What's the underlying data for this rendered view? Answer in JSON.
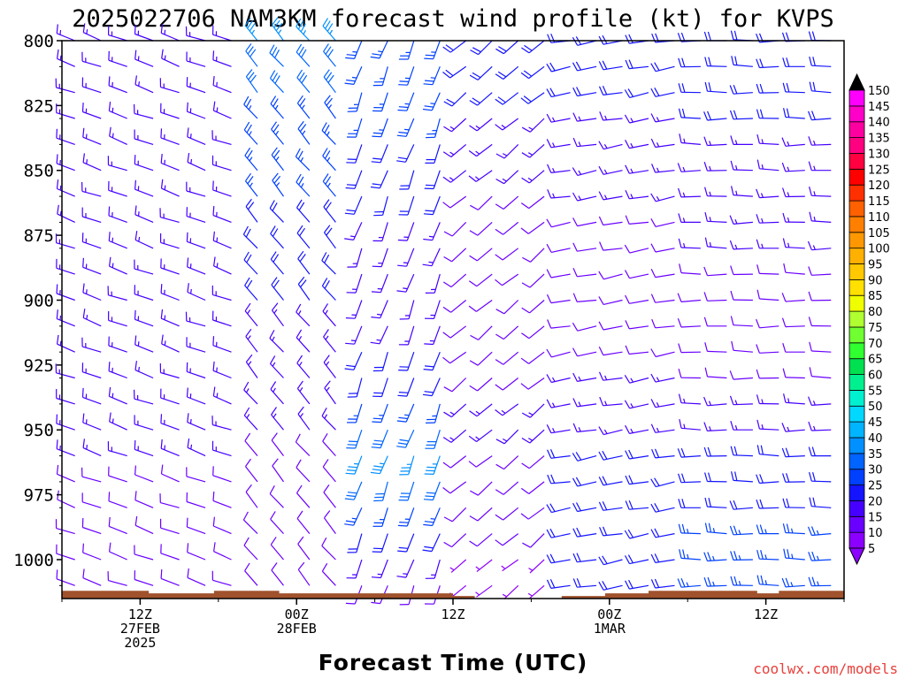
{
  "title": "2025022706 NAM3KM forecast wind profile (kt) for KVPS",
  "x_axis_label": "Forecast Time (UTC)",
  "credit": "coolwx.com/models",
  "credit_color": "#e8413c",
  "terrain_color": "#a0522d",
  "y_ticks": [
    "800",
    "825",
    "850",
    "875",
    "900",
    "925",
    "950",
    "975",
    "1000"
  ],
  "x_ticks": [
    {
      "hour": 6,
      "lines": [
        "12Z",
        "27FEB",
        "2025"
      ]
    },
    {
      "hour": 18,
      "lines": [
        "00Z",
        "28FEB"
      ]
    },
    {
      "hour": 30,
      "lines": [
        "12Z"
      ]
    },
    {
      "hour": 42,
      "lines": [
        "00Z",
        "1MAR"
      ]
    },
    {
      "hour": 54,
      "lines": [
        "12Z"
      ]
    }
  ],
  "colorbar": {
    "levels": [
      5,
      10,
      15,
      20,
      25,
      30,
      35,
      40,
      45,
      50,
      55,
      60,
      65,
      70,
      75,
      80,
      85,
      90,
      95,
      100,
      105,
      110,
      115,
      120,
      125,
      130,
      135,
      140,
      145,
      150
    ],
    "colors": [
      "#8b00ff",
      "#6a00ff",
      "#4600ff",
      "#1414ff",
      "#0040ff",
      "#0064ff",
      "#0090ff",
      "#00b4ff",
      "#00d8ff",
      "#00f0d0",
      "#00f090",
      "#00e050",
      "#30ff30",
      "#70ff30",
      "#b0ff30",
      "#f0ff00",
      "#ffe000",
      "#ffc800",
      "#ffb000",
      "#ff9800",
      "#ff8000",
      "#ff6000",
      "#ff3000",
      "#ff0000",
      "#ff0040",
      "#ff0080",
      "#ff00a0",
      "#ff00c8",
      "#ff00ff",
      "#000000"
    ]
  },
  "chart_data": {
    "type": "wind_barb_time_height",
    "title": "2025022706 NAM3KM forecast wind profile (kt) for KVPS",
    "xlabel": "Forecast Time (UTC)",
    "ylabel": "",
    "units": "kt",
    "x_start_hour": 0,
    "x_end_hour": 60,
    "x_step_hours": 2,
    "y_levels_hpa": [
      800,
      810,
      820,
      830,
      840,
      850,
      860,
      870,
      880,
      890,
      900,
      910,
      920,
      930,
      940,
      950,
      960,
      970,
      980,
      990,
      1000,
      1010
    ],
    "ylim": [
      800,
      1015
    ],
    "surface_pressure_hpa": [
      1012,
      1012,
      1012,
      1012,
      1013,
      1013,
      1013,
      1012,
      1012,
      1012,
      1013,
      1013,
      1013,
      1013,
      1013,
      1013,
      1013,
      1013,
      1014,
      1015,
      1015,
      1015,
      1015,
      1014,
      1014,
      1013,
      1013,
      1012,
      1012,
      1012,
      1012,
      1012,
      1013,
      1012,
      1012,
      1012
    ],
    "sectors": [
      {
        "from_hour": 0,
        "to_hour": 14,
        "direction_deg": 290,
        "speed_kt": [
          15,
          15,
          15,
          15,
          15,
          15,
          15,
          15,
          15,
          15,
          15,
          15,
          15,
          15,
          15,
          15,
          15,
          10,
          10,
          10,
          10,
          10
        ]
      },
      {
        "from_hour": 14,
        "to_hour": 22,
        "direction_deg": 320,
        "speed_kt": [
          35,
          30,
          30,
          25,
          25,
          25,
          25,
          20,
          20,
          20,
          20,
          15,
          15,
          15,
          15,
          15,
          10,
          10,
          10,
          10,
          10,
          10
        ]
      },
      {
        "from_hour": 22,
        "to_hour": 30,
        "direction_deg": 200,
        "speed_kt": [
          25,
          25,
          25,
          25,
          20,
          20,
          20,
          15,
          15,
          15,
          15,
          15,
          20,
          20,
          25,
          30,
          35,
          30,
          25,
          20,
          15,
          10
        ]
      },
      {
        "from_hour": 30,
        "to_hour": 38,
        "direction_deg": 230,
        "speed_kt": [
          20,
          20,
          20,
          15,
          15,
          15,
          10,
          10,
          10,
          10,
          10,
          10,
          10,
          10,
          15,
          15,
          10,
          10,
          10,
          10,
          5,
          5
        ]
      },
      {
        "from_hour": 38,
        "to_hour": 48,
        "direction_deg": 260,
        "speed_kt": [
          20,
          20,
          20,
          15,
          15,
          15,
          15,
          10,
          10,
          10,
          10,
          10,
          10,
          15,
          15,
          15,
          20,
          20,
          20,
          20,
          20,
          20
        ]
      },
      {
        "from_hour": 48,
        "to_hour": 60,
        "direction_deg": 270,
        "speed_kt": [
          20,
          20,
          20,
          20,
          15,
          15,
          15,
          15,
          15,
          10,
          10,
          10,
          10,
          10,
          15,
          15,
          20,
          20,
          20,
          25,
          25,
          25
        ]
      }
    ],
    "grid": false,
    "legend": "colorbar-right"
  }
}
